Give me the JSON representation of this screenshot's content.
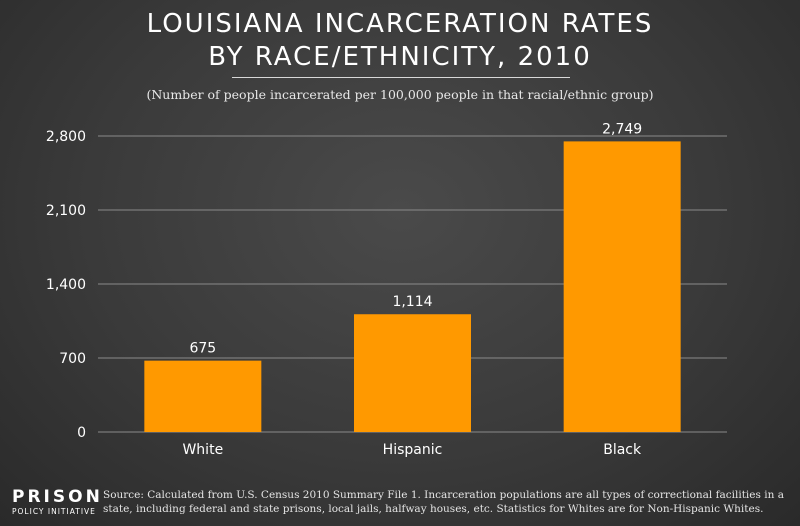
{
  "title": {
    "line1": "LOUISIANA INCARCERATION RATES",
    "line2": "BY RACE/ETHNICITY, 2010"
  },
  "subtitle": "(Number of people incarcerated per 100,000 people in that racial/ethnic group)",
  "colors": {
    "bar": "#ff9900",
    "grid": "#8a8a8a",
    "text": "#ffffff"
  },
  "chart_data": {
    "type": "bar",
    "title": "LOUISIANA INCARCERATION RATES BY RACE/ETHNICITY, 2010",
    "subtitle": "(Number of people incarcerated per 100,000 people in that racial/ethnic group)",
    "categories": [
      "White",
      "Hispanic",
      "Black"
    ],
    "values": [
      675,
      1114,
      2749
    ],
    "value_labels": [
      "675",
      "1,114",
      "2,749"
    ],
    "xlabel": "",
    "ylabel": "",
    "ylim": [
      0,
      2800
    ],
    "yticks": [
      0,
      700,
      1400,
      2100,
      2800
    ],
    "ytick_labels": [
      "0",
      "700",
      "1,400",
      "2,100",
      "2,800"
    ],
    "grid": true
  },
  "footer": {
    "logo_line1": "PRISON",
    "logo_line2": "POLICY INITIATIVE",
    "source": "Source: Calculated from U.S. Census 2010 Summary File 1. Incarceration populations are all types of correctional facilities in a state, including federal and state prisons, local jails, halfway houses, etc. Statistics for Whites are for Non-Hispanic Whites."
  }
}
